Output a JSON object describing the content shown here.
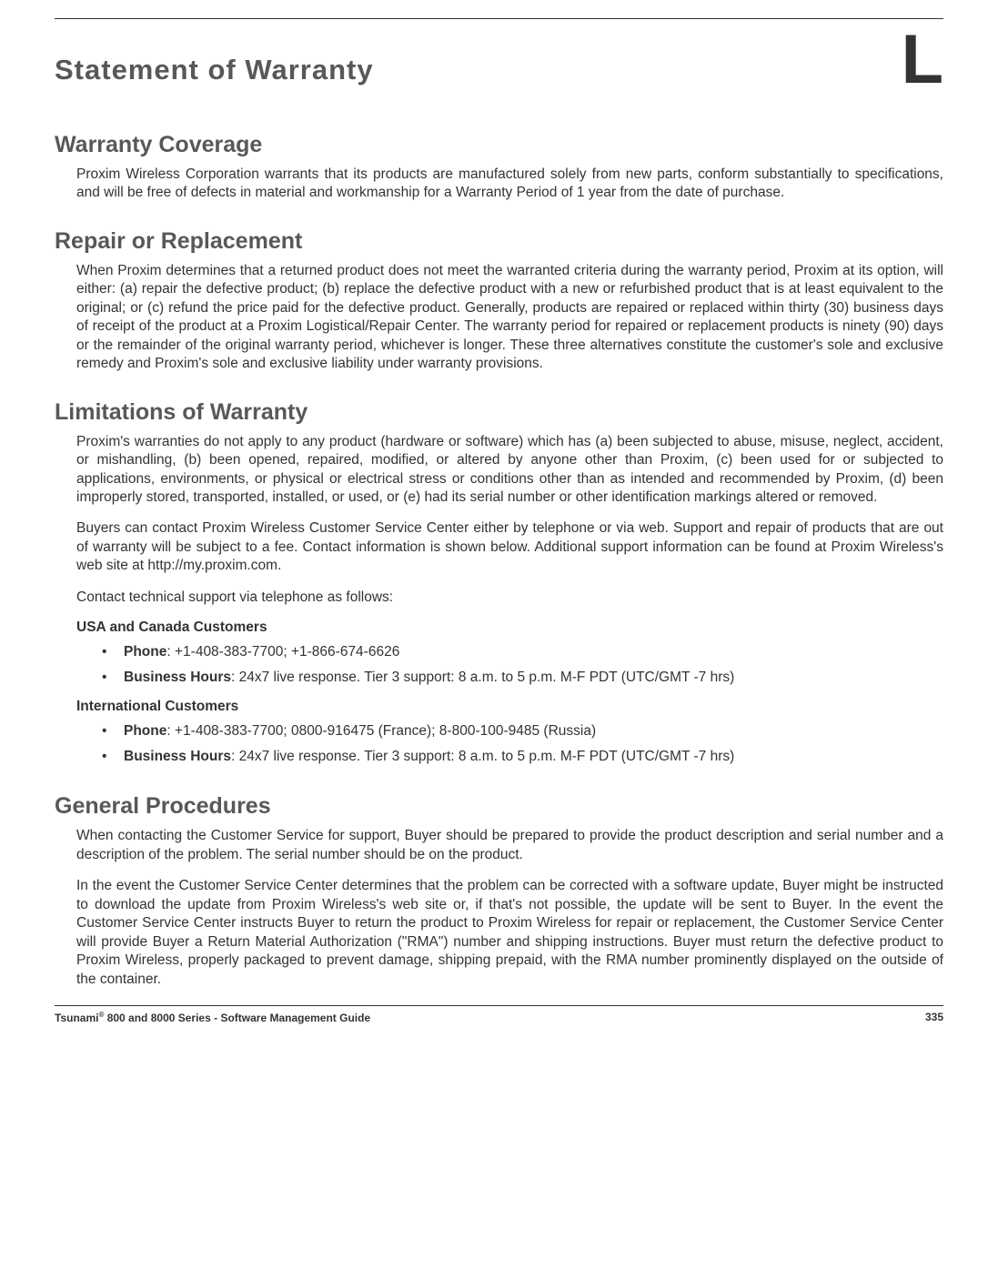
{
  "appendix_letter": "L",
  "main_title": "Statement of Warranty",
  "sections": {
    "coverage": {
      "heading": "Warranty Coverage",
      "p1": "Proxim Wireless Corporation warrants that its products are manufactured solely from new parts, conform substantially to specifications, and will be free of defects in material and workmanship for a Warranty Period of 1 year from the date of purchase."
    },
    "repair": {
      "heading": "Repair or Replacement",
      "p1": "When Proxim determines that a returned product does not meet the warranted criteria during the warranty period, Proxim at its option, will either: (a) repair the defective product; (b) replace the defective product with a new or refurbished product that is at least equivalent to the original; or (c) refund the price paid for the defective product. Generally, products are repaired or replaced within thirty (30) business days of receipt of the product at a Proxim Logistical/Repair Center. The warranty period for repaired or replacement products is ninety (90) days or the remainder of the original warranty period, whichever is longer. These three alternatives constitute the customer's sole and exclusive remedy and Proxim's sole and exclusive liability under warranty provisions."
    },
    "limitations": {
      "heading": "Limitations of Warranty",
      "p1": "Proxim's warranties do not apply to any product (hardware or software) which has (a) been subjected to abuse, misuse, neglect, accident, or mishandling, (b) been opened, repaired, modified, or altered by anyone other than Proxim, (c) been used for or subjected to applications, environments, or physical or electrical stress or conditions other than as intended and recommended by Proxim, (d) been improperly stored, transported, installed, or used, or (e) had its serial number or other identification markings altered or removed.",
      "p2_pre": "Buyers can contact Proxim Wireless Customer Service Center either by telephone or via web. Support and repair of products that are out of warranty will be subject to a fee. Contact information is shown below. Additional support information can be found at Proxim Wireless's web site at ",
      "p2_link": "http://my.proxim.com",
      "p2_post": ".",
      "p3": "Contact technical support via telephone as follows:",
      "usa_heading": "USA and Canada Customers",
      "usa_phone_label": "Phone",
      "usa_phone_value": ": +1-408-383-7700; +1-866-674-6626",
      "usa_hours_label": "Business Hours",
      "usa_hours_value": ": 24x7 live response. Tier 3 support: 8 a.m. to 5 p.m. M-F PDT (UTC/GMT -7 hrs)",
      "intl_heading": "International Customers",
      "intl_phone_label": "Phone",
      "intl_phone_value": ": +1-408-383-7700; 0800-916475 (France); 8-800-100-9485 (Russia)",
      "intl_hours_label": "Business Hours",
      "intl_hours_value": ": 24x7 live response. Tier 3 support: 8 a.m. to 5 p.m. M-F PDT (UTC/GMT -7 hrs)"
    },
    "general": {
      "heading": "General Procedures",
      "p1": "When contacting the Customer Service for support, Buyer should be prepared to provide the product description and serial number and a description of the problem. The serial number should be on the product.",
      "p2": "In the event the Customer Service Center determines that the problem can be corrected with a software update, Buyer might be instructed to download the update from Proxim Wireless's web site or, if that's not possible, the update will be sent to Buyer. In the event the Customer Service Center instructs Buyer to return the product to Proxim Wireless for repair or replacement, the Customer Service Center will provide Buyer a Return Material Authorization (\"RMA\") number and shipping instructions. Buyer must return the defective product to Proxim Wireless, properly packaged to prevent damage, shipping prepaid, with the RMA number prominently displayed on the outside of the container."
    }
  },
  "footer": {
    "left_pre": "Tsunami",
    "left_sup": "®",
    "left_post": " 800 and 8000 Series - Software Management Guide",
    "page_number": "335"
  },
  "colors": {
    "heading_gray": "#585858",
    "body_text": "#333333",
    "background": "#ffffff"
  },
  "fontsizes": {
    "appendix_letter": 76,
    "main_title": 31,
    "section_heading": 25,
    "body": 15.5,
    "footer": 12
  }
}
